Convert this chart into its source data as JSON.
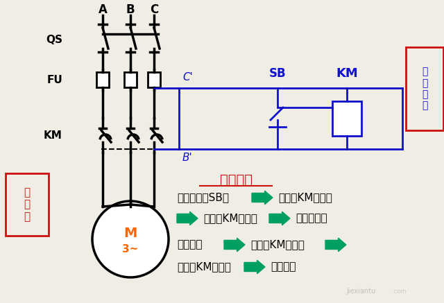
{
  "bg_color": "#f0ede5",
  "phase_labels": [
    "A",
    "B",
    "C"
  ],
  "qs_label": "QS",
  "fu_label": "FU",
  "km_main_label": "KM",
  "main_circuit_box_text": "主\n电\n路",
  "control_circuit_box_text": "控\n制\n电\n路",
  "motor_label_m": "M",
  "motor_label_3": "3~",
  "cp_label": "C'",
  "bp_label": "B'",
  "sb_label": "SB",
  "km_coil_label": "KM",
  "action_title": "动作过程",
  "line1a": "按下按钮（SB）",
  "arrow1": "=>",
  "line1b": "线圈（KM）通电",
  "line2a": "触头（KM）闭合",
  "arrow2": "=>",
  "line2b": "电机转动；",
  "line3a": "按钮松开",
  "arrow3": "=>",
  "line3b": "线圈（KM）断电",
  "arrow4": "=>",
  "line4a": "触头（KM）打开",
  "arrow5": "=>",
  "line4b": "电机停转",
  "black_color": "#000000",
  "blue_color": "#1010cc",
  "red_color": "#cc1010",
  "green_color": "#00a060",
  "orange_color": "#ff6600",
  "white_color": "#ffffff",
  "gray_color": "#888888"
}
